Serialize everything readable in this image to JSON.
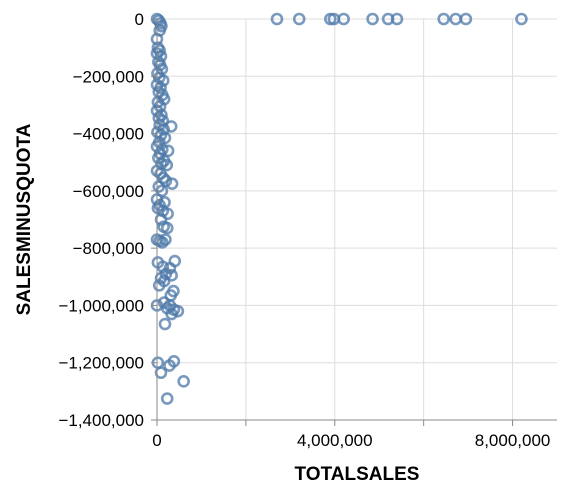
{
  "chart_data": {
    "type": "scatter",
    "xlabel": "TOTALSALES",
    "ylabel": "SALESMINUSQUOTA",
    "xlim": [
      0,
      9000000
    ],
    "ylim": [
      -1400000,
      0
    ],
    "x_ticks": [
      0,
      4000000,
      8000000
    ],
    "x_tick_labels": [
      "0",
      "4,000,000",
      "8,000,000"
    ],
    "x_minor_ticks": [
      2000000,
      6000000
    ],
    "y_ticks": [
      0,
      -200000,
      -400000,
      -600000,
      -800000,
      -1000000,
      -1200000,
      -1400000
    ],
    "y_tick_labels": [
      "0",
      "−200,000",
      "−400,000",
      "−600,000",
      "−800,000",
      "−1,000,000",
      "−1,200,000",
      "−1,400,000"
    ],
    "grid": true,
    "point_shape": "open-circle",
    "point_color": "#4c78a8",
    "points": [
      {
        "x": 2700000,
        "y": 0
      },
      {
        "x": 3200000,
        "y": 0
      },
      {
        "x": 3900000,
        "y": 0
      },
      {
        "x": 3980000,
        "y": 0
      },
      {
        "x": 4200000,
        "y": 0
      },
      {
        "x": 4850000,
        "y": 0
      },
      {
        "x": 5200000,
        "y": 0
      },
      {
        "x": 5400000,
        "y": 0
      },
      {
        "x": 6450000,
        "y": 0
      },
      {
        "x": 6720000,
        "y": 0
      },
      {
        "x": 6950000,
        "y": 0
      },
      {
        "x": 8200000,
        "y": 0
      },
      {
        "x": 0,
        "y": 0
      },
      {
        "x": 40000,
        "y": -5000
      },
      {
        "x": 80000,
        "y": -15000
      },
      {
        "x": 100000,
        "y": -25000
      },
      {
        "x": 60000,
        "y": -40000
      },
      {
        "x": 0,
        "y": -70000
      },
      {
        "x": 20000,
        "y": -100000
      },
      {
        "x": 60000,
        "y": -110000
      },
      {
        "x": 0,
        "y": -120000
      },
      {
        "x": 90000,
        "y": -130000
      },
      {
        "x": 30000,
        "y": -150000
      },
      {
        "x": 70000,
        "y": -160000
      },
      {
        "x": 110000,
        "y": -175000
      },
      {
        "x": 10000,
        "y": -190000
      },
      {
        "x": 50000,
        "y": -205000
      },
      {
        "x": 140000,
        "y": -215000
      },
      {
        "x": 0,
        "y": -230000
      },
      {
        "x": 80000,
        "y": -240000
      },
      {
        "x": 40000,
        "y": -255000
      },
      {
        "x": 120000,
        "y": -265000
      },
      {
        "x": 160000,
        "y": -280000
      },
      {
        "x": 20000,
        "y": -290000
      },
      {
        "x": 70000,
        "y": -305000
      },
      {
        "x": 0,
        "y": -320000
      },
      {
        "x": 100000,
        "y": -335000
      },
      {
        "x": 40000,
        "y": -345000
      },
      {
        "x": 130000,
        "y": -355000
      },
      {
        "x": 60000,
        "y": -370000
      },
      {
        "x": 320000,
        "y": -375000
      },
      {
        "x": 150000,
        "y": -385000
      },
      {
        "x": 10000,
        "y": -395000
      },
      {
        "x": 90000,
        "y": -405000
      },
      {
        "x": 180000,
        "y": -415000
      },
      {
        "x": 50000,
        "y": -430000
      },
      {
        "x": 0,
        "y": -445000
      },
      {
        "x": 120000,
        "y": -455000
      },
      {
        "x": 250000,
        "y": -460000
      },
      {
        "x": 70000,
        "y": -470000
      },
      {
        "x": 30000,
        "y": -485000
      },
      {
        "x": 160000,
        "y": -495000
      },
      {
        "x": 100000,
        "y": -505000
      },
      {
        "x": 220000,
        "y": -510000
      },
      {
        "x": 0,
        "y": -530000
      },
      {
        "x": 80000,
        "y": -540000
      },
      {
        "x": 140000,
        "y": -555000
      },
      {
        "x": 200000,
        "y": -565000
      },
      {
        "x": 340000,
        "y": -575000
      },
      {
        "x": 40000,
        "y": -585000
      },
      {
        "x": 110000,
        "y": -600000
      },
      {
        "x": 0,
        "y": -630000
      },
      {
        "x": 170000,
        "y": -640000
      },
      {
        "x": 60000,
        "y": -650000
      },
      {
        "x": 20000,
        "y": -660000
      },
      {
        "x": 130000,
        "y": -670000
      },
      {
        "x": 240000,
        "y": -680000
      },
      {
        "x": 90000,
        "y": -700000
      },
      {
        "x": 150000,
        "y": -725000
      },
      {
        "x": 230000,
        "y": -730000
      },
      {
        "x": 0,
        "y": -770000
      },
      {
        "x": 60000,
        "y": -775000
      },
      {
        "x": 120000,
        "y": -780000
      },
      {
        "x": 190000,
        "y": -770000
      },
      {
        "x": 20000,
        "y": -850000
      },
      {
        "x": 400000,
        "y": -845000
      },
      {
        "x": 130000,
        "y": -865000
      },
      {
        "x": 290000,
        "y": -870000
      },
      {
        "x": 200000,
        "y": -890000
      },
      {
        "x": 90000,
        "y": -905000
      },
      {
        "x": 330000,
        "y": -895000
      },
      {
        "x": 160000,
        "y": -915000
      },
      {
        "x": 50000,
        "y": -930000
      },
      {
        "x": 370000,
        "y": -950000
      },
      {
        "x": 310000,
        "y": -965000
      },
      {
        "x": 0,
        "y": -1000000
      },
      {
        "x": 160000,
        "y": -990000
      },
      {
        "x": 290000,
        "y": -1000000
      },
      {
        "x": 230000,
        "y": -1010000
      },
      {
        "x": 380000,
        "y": -1015000
      },
      {
        "x": 470000,
        "y": -1020000
      },
      {
        "x": 330000,
        "y": -1030000
      },
      {
        "x": 180000,
        "y": -1065000
      },
      {
        "x": 20000,
        "y": -1200000
      },
      {
        "x": 380000,
        "y": -1195000
      },
      {
        "x": 280000,
        "y": -1210000
      },
      {
        "x": 90000,
        "y": -1235000
      },
      {
        "x": 600000,
        "y": -1265000
      },
      {
        "x": 230000,
        "y": -1325000
      }
    ]
  }
}
